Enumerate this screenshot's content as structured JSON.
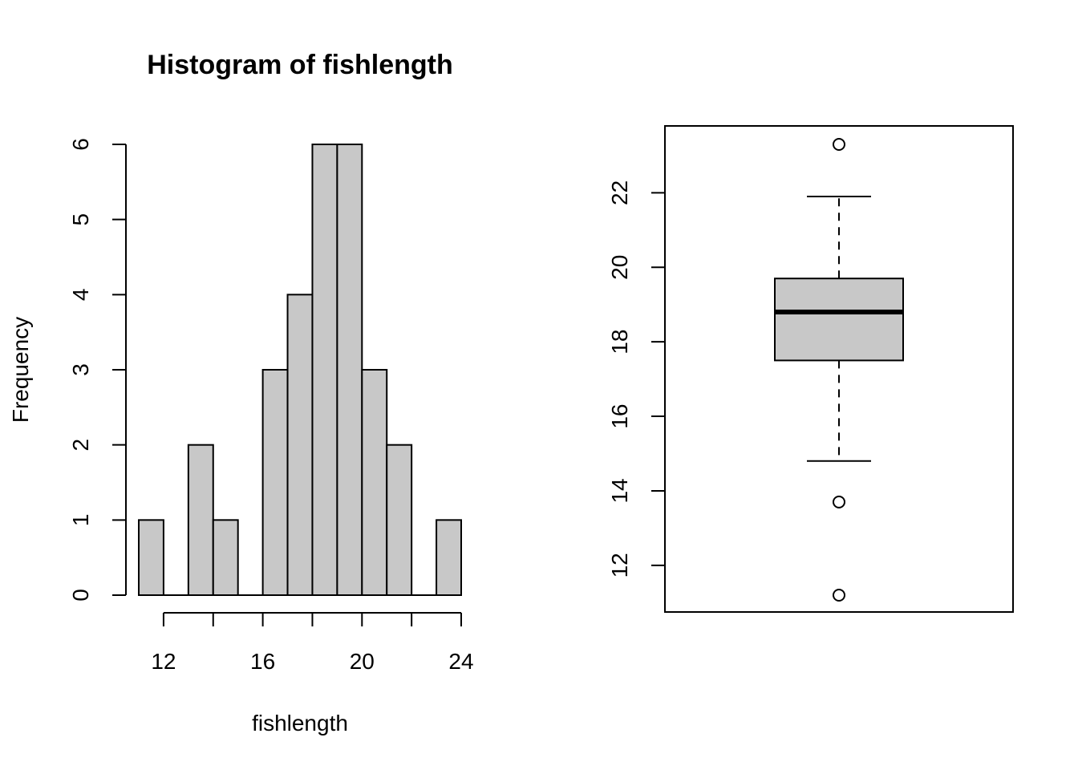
{
  "chart_data": [
    {
      "type": "bar",
      "subtype": "histogram",
      "title": "Histogram of fishlength",
      "xlabel": "fishlength",
      "ylabel": "Frequency",
      "bins": [
        {
          "x0": 11,
          "x1": 12,
          "count": 1
        },
        {
          "x0": 12,
          "x1": 13,
          "count": 0
        },
        {
          "x0": 13,
          "x1": 14,
          "count": 2
        },
        {
          "x0": 14,
          "x1": 15,
          "count": 1
        },
        {
          "x0": 15,
          "x1": 16,
          "count": 0
        },
        {
          "x0": 16,
          "x1": 17,
          "count": 3
        },
        {
          "x0": 17,
          "x1": 18,
          "count": 4
        },
        {
          "x0": 18,
          "x1": 19,
          "count": 6
        },
        {
          "x0": 19,
          "x1": 20,
          "count": 6
        },
        {
          "x0": 20,
          "x1": 21,
          "count": 3
        },
        {
          "x0": 21,
          "x1": 22,
          "count": 2
        },
        {
          "x0": 22,
          "x1": 23,
          "count": 0
        },
        {
          "x0": 23,
          "x1": 24,
          "count": 1
        }
      ],
      "xticks": [
        12,
        16,
        20,
        24
      ],
      "xticks_minor": [
        12,
        14,
        16,
        18,
        20,
        22,
        24
      ],
      "yticks": [
        0,
        1,
        2,
        3,
        4,
        5,
        6
      ],
      "xlim": [
        11,
        24
      ],
      "ylim": [
        0,
        6
      ],
      "grid": false
    },
    {
      "type": "box",
      "title": "",
      "xlabel": "",
      "ylabel": "",
      "box": {
        "whisker_low": 14.8,
        "q1": 17.5,
        "median": 18.8,
        "q3": 19.7,
        "whisker_high": 21.9
      },
      "outliers": [
        23.3,
        13.7,
        11.2
      ],
      "yticks": [
        12,
        14,
        16,
        18,
        20,
        22
      ],
      "ylim": [
        11.2,
        23.3
      ],
      "grid": false
    }
  ],
  "colors": {
    "fill": "#c8c8c8",
    "stroke": "#000000"
  }
}
